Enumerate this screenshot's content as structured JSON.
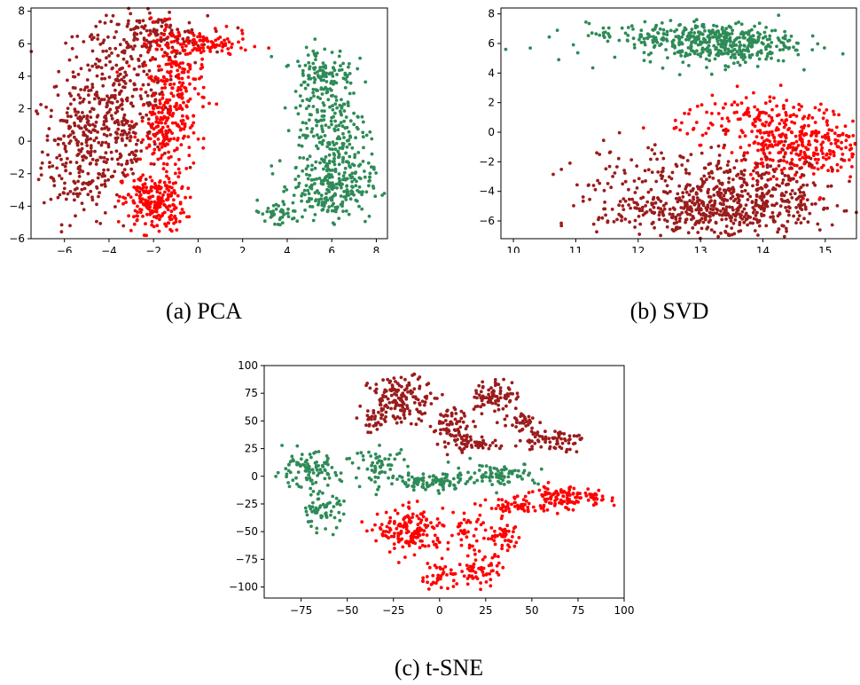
{
  "colors": {
    "dark_red": "#9b1c1c",
    "red": "#ff0000",
    "green": "#2e8b57"
  },
  "captions": {
    "pca": "(a) PCA",
    "svd": "(b) SVD",
    "tsne": "(c) t-SNE"
  },
  "chart_data": [
    {
      "type": "scatter",
      "title": "",
      "xlabel": "",
      "ylabel": "",
      "xlim": [
        -7.5,
        8.5
      ],
      "ylim": [
        -6,
        8.2
      ],
      "xticks": [
        -6,
        -4,
        -2,
        0,
        2,
        4,
        6,
        8
      ],
      "yticks": [
        -6,
        -4,
        -2,
        0,
        2,
        4,
        6,
        8
      ],
      "xtick_labels": [
        "−6",
        "−4",
        "−2",
        "0",
        "2",
        "4",
        "6",
        "8"
      ],
      "ytick_labels": [
        "−6",
        "−4",
        "−2",
        "0",
        "2",
        "4",
        "6",
        "8"
      ],
      "grid": false,
      "series": [
        {
          "color": "#9b1c1c",
          "clusters": [
            {
              "cx": -5.2,
              "cy": -0.5,
              "sx": 0.9,
              "sy": 2.2,
              "n": 260
            },
            {
              "cx": -3.5,
              "cy": 3.5,
              "sx": 1.4,
              "sy": 2.0,
              "n": 220
            },
            {
              "cx": -2.0,
              "cy": 6.5,
              "sx": 1.2,
              "sy": 0.6,
              "n": 120
            },
            {
              "cx": -3.2,
              "cy": 0.5,
              "sx": 0.8,
              "sy": 2.0,
              "n": 120
            }
          ]
        },
        {
          "color": "#ff0000",
          "clusters": [
            {
              "cx": -2.0,
              "cy": -3.8,
              "sx": 0.7,
              "sy": 0.9,
              "n": 220
            },
            {
              "cx": -1.0,
              "cy": 4.0,
              "sx": 0.7,
              "sy": 1.6,
              "n": 180
            },
            {
              "cx": -1.4,
              "cy": 0.6,
              "sx": 0.6,
              "sy": 1.4,
              "n": 150
            },
            {
              "cx": 0.5,
              "cy": 5.9,
              "sx": 0.9,
              "sy": 0.4,
              "n": 80
            }
          ]
        },
        {
          "color": "#2e8b57",
          "clusters": [
            {
              "cx": 6.0,
              "cy": -2.8,
              "sx": 0.9,
              "sy": 1.0,
              "n": 240
            },
            {
              "cx": 6.0,
              "cy": 1.0,
              "sx": 0.8,
              "sy": 2.0,
              "n": 220
            },
            {
              "cx": 5.6,
              "cy": 4.3,
              "sx": 0.7,
              "sy": 0.8,
              "n": 90
            },
            {
              "cx": 3.5,
              "cy": -4.5,
              "sx": 0.6,
              "sy": 0.4,
              "n": 40
            }
          ]
        }
      ]
    },
    {
      "type": "scatter",
      "title": "",
      "xlabel": "",
      "ylabel": "",
      "xlim": [
        9.8,
        15.5
      ],
      "ylim": [
        -7.2,
        8.4
      ],
      "xticks": [
        10,
        11,
        12,
        13,
        14,
        15
      ],
      "yticks": [
        -6,
        -4,
        -2,
        0,
        2,
        4,
        6,
        8
      ],
      "xtick_labels": [
        "10",
        "11",
        "12",
        "13",
        "14",
        "15"
      ],
      "ytick_labels": [
        "−6",
        "−4",
        "−2",
        "0",
        "2",
        "4",
        "6",
        "8"
      ],
      "grid": false,
      "series": [
        {
          "color": "#2e8b57",
          "clusters": [
            {
              "cx": 13.3,
              "cy": 6.0,
              "sx": 0.6,
              "sy": 0.7,
              "n": 380
            },
            {
              "cx": 12.2,
              "cy": 6.6,
              "sx": 0.5,
              "sy": 0.4,
              "n": 80
            },
            {
              "cx": 10.6,
              "cy": 5.5,
              "sx": 0.4,
              "sy": 0.7,
              "n": 8
            }
          ]
        },
        {
          "color": "#ff0000",
          "clusters": [
            {
              "cx": 14.6,
              "cy": -0.8,
              "sx": 0.5,
              "sy": 1.2,
              "n": 320
            },
            {
              "cx": 13.8,
              "cy": 1.0,
              "sx": 0.6,
              "sy": 0.8,
              "n": 100
            }
          ]
        },
        {
          "color": "#9b1c1c",
          "clusters": [
            {
              "cx": 13.7,
              "cy": -4.5,
              "sx": 0.8,
              "sy": 1.4,
              "n": 480
            },
            {
              "cx": 12.7,
              "cy": -5.5,
              "sx": 0.7,
              "sy": 0.7,
              "n": 200
            },
            {
              "cx": 12.0,
              "cy": -3.0,
              "sx": 0.6,
              "sy": 1.2,
              "n": 70
            }
          ]
        }
      ]
    },
    {
      "type": "scatter",
      "title": "",
      "xlabel": "",
      "ylabel": "",
      "xlim": [
        -95,
        100
      ],
      "ylim": [
        -110,
        100
      ],
      "xticks": [
        -75,
        -50,
        -25,
        0,
        25,
        50,
        75,
        100
      ],
      "yticks": [
        -100,
        -75,
        -50,
        -25,
        0,
        25,
        50,
        75,
        100
      ],
      "xtick_labels": [
        "−75",
        "−50",
        "−25",
        "0",
        "25",
        "50",
        "75",
        "100"
      ],
      "ytick_labels": [
        "−100",
        "−75",
        "−50",
        "−25",
        "0",
        "25",
        "50",
        "75",
        "100"
      ],
      "grid": false,
      "series": [
        {
          "color": "#9b1c1c",
          "clusters": [
            {
              "cx": -20,
              "cy": 70,
              "sx": 9,
              "sy": 10,
              "n": 150
            },
            {
              "cx": 8,
              "cy": 44,
              "sx": 6,
              "sy": 9,
              "n": 80
            },
            {
              "cx": 20,
              "cy": 30,
              "sx": 6,
              "sy": 3,
              "n": 40
            },
            {
              "cx": 30,
              "cy": 72,
              "sx": 6,
              "sy": 8,
              "n": 80
            },
            {
              "cx": 45,
              "cy": 50,
              "sx": 4,
              "sy": 5,
              "n": 30
            },
            {
              "cx": 60,
              "cy": 33,
              "sx": 9,
              "sy": 5,
              "n": 70
            },
            {
              "cx": -35,
              "cy": 50,
              "sx": 5,
              "sy": 5,
              "n": 30
            }
          ]
        },
        {
          "color": "#2e8b57",
          "clusters": [
            {
              "cx": -72,
              "cy": 5,
              "sx": 9,
              "sy": 8,
              "n": 100
            },
            {
              "cx": -64,
              "cy": -32,
              "sx": 6,
              "sy": 8,
              "n": 60
            },
            {
              "cx": -32,
              "cy": 10,
              "sx": 7,
              "sy": 8,
              "n": 60
            },
            {
              "cx": -5,
              "cy": -5,
              "sx": 12,
              "sy": 4,
              "n": 90
            },
            {
              "cx": 30,
              "cy": 2,
              "sx": 12,
              "sy": 5,
              "n": 90
            }
          ]
        },
        {
          "color": "#ff0000",
          "clusters": [
            {
              "cx": -15,
              "cy": -50,
              "sx": 9,
              "sy": 10,
              "n": 160
            },
            {
              "cx": 0,
              "cy": -90,
              "sx": 6,
              "sy": 6,
              "n": 40
            },
            {
              "cx": 22,
              "cy": -85,
              "sx": 6,
              "sy": 7,
              "n": 60
            },
            {
              "cx": 15,
              "cy": -50,
              "sx": 5,
              "sy": 8,
              "n": 40
            },
            {
              "cx": 35,
              "cy": -55,
              "sx": 5,
              "sy": 6,
              "n": 40
            },
            {
              "cx": 40,
              "cy": -28,
              "sx": 7,
              "sy": 4,
              "n": 50
            },
            {
              "cx": 65,
              "cy": -20,
              "sx": 8,
              "sy": 6,
              "n": 100
            },
            {
              "cx": 85,
              "cy": -20,
              "sx": 4,
              "sy": 3,
              "n": 20
            }
          ]
        }
      ]
    }
  ]
}
